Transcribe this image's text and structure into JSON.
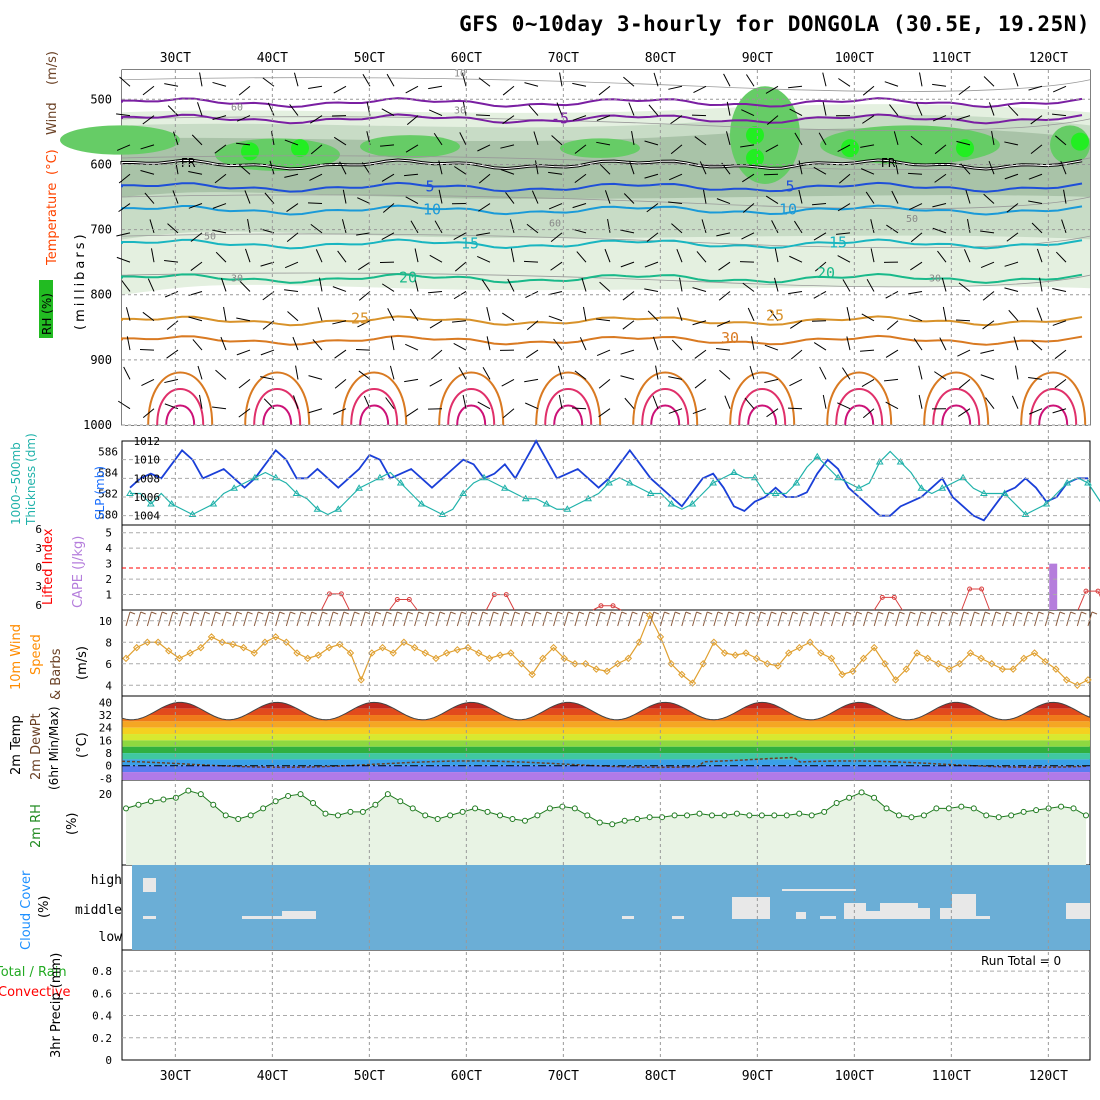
{
  "title": "GFS 0~10day 3-hourly for DONGOLA (30.5E, 19.25N)",
  "colors": {
    "wind_label": "#6b4226",
    "temp_label": "#ff4500",
    "rh_label": "#228b22",
    "cape_label": "#b57edc",
    "lifted_label": "#ff0000",
    "slp_label": "#1a6fff",
    "thick_label": "#20b2aa",
    "wind10_label": "#ff8c00",
    "dewpt_label": "#6b4226",
    "cloud_label": "#1e90ff",
    "precip_conv_label": "#ff0000",
    "precip_total_label": "#22aa22",
    "cloud_bg": "#6baed6",
    "rh_fill": "#e8f3e4"
  },
  "date_labels": [
    "30CT",
    "40CT",
    "50CT",
    "60CT",
    "70CT",
    "80CT",
    "90CT",
    "100CT",
    "110CT",
    "120CT"
  ],
  "panels": {
    "upper": {
      "y_label_wind": "Wind",
      "y_label_wind_units": "(m/s)",
      "y_label_temp": "Temperature",
      "y_label_temp_units": "(°C)",
      "y_label_rh": "RH (%)",
      "y_label_pressure": "(millibars)",
      "fr_label": "FR",
      "isotherm_labels": [
        "-5",
        "5",
        "10",
        "15",
        "20",
        "25",
        "30"
      ],
      "rh_labels": [
        "10",
        "30",
        "50",
        "60",
        "70"
      ]
    },
    "slp": {
      "y_label_thick": "1000~500mb",
      "y_label_thick2": "Thickness (dm)",
      "y_label_slp": "SLP (mb)"
    },
    "cape": {
      "y_label_li": "Lifted Index",
      "y_label_cape": "CAPE (J/kg)"
    },
    "wind10": {
      "y_label_1": "10m Wind",
      "y_label_2": "Speed",
      "y_label_3": "& Barbs",
      "y_label_units": "(m/s)"
    },
    "temp2m": {
      "y_label_1": "2m Temp",
      "y_label_2": "2m DewPt",
      "y_label_3": "(6hr Min/Max)",
      "y_label_units": "(°C)"
    },
    "rh2m": {
      "y_label": "2m RH",
      "y_label_units": "(%)"
    },
    "cloud": {
      "y_label": "Cloud Cover",
      "y_label_units": "(%)"
    },
    "precip": {
      "y_label_1": "Total / Rain",
      "y_label_2": "Convective",
      "y_label_3": "3hr Precip (mm)",
      "run_total_label": "Run Total = 0"
    }
  },
  "chart_data": [
    {
      "type": "line",
      "name": "SLP and 1000-500mb thickness",
      "series": [
        {
          "name": "SLP (mb)",
          "axis": "right",
          "values": [
            1007,
            1008,
            1008.5,
            1008,
            1009.5,
            1011,
            1010,
            1008,
            1008.5,
            1009,
            1008,
            1007,
            1008,
            1009.5,
            1011,
            1010,
            1008,
            1008,
            1009,
            1008,
            1007,
            1008,
            1009,
            1010.5,
            1010,
            1008,
            1008.5,
            1009,
            1008,
            1007,
            1008,
            1009,
            1010,
            1009.5,
            1008,
            1008.5,
            1009.5,
            1008,
            1010,
            1012,
            1010,
            1008,
            1008.5,
            1009,
            1008,
            1007,
            1008,
            1009.5,
            1011,
            1009.5,
            1008,
            1007,
            1006,
            1005,
            1006.5,
            1008,
            1008.5,
            1007,
            1005,
            1004.5,
            1005.5,
            1006,
            1007,
            1006,
            1006,
            1006.5,
            1008.5,
            1010,
            1009,
            1007,
            1006,
            1005,
            1004,
            1004,
            1005,
            1005.5,
            1006,
            1007,
            1008,
            1006,
            1005,
            1004,
            1003.5,
            1005,
            1006.5,
            1007,
            1008,
            1007,
            1005.5,
            1006,
            1007.5,
            1008,
            1008
          ]
        },
        {
          "name": "Thickness (dm)",
          "axis": "left",
          "values": [
            582,
            582,
            581,
            582,
            581,
            580.5,
            580,
            580.5,
            581,
            582,
            582.5,
            583,
            583.5,
            584,
            583.5,
            583,
            582,
            581.5,
            580.5,
            580,
            580.5,
            581.5,
            582.5,
            583,
            583.5,
            584,
            583,
            582,
            581,
            580.5,
            580,
            580.5,
            582,
            583,
            583.5,
            583,
            582.5,
            582,
            581.5,
            581.5,
            581,
            580.5,
            580.5,
            581,
            581.5,
            582,
            583,
            583.5,
            583,
            582.5,
            582,
            582,
            581,
            580.5,
            581,
            582,
            583,
            583.5,
            584,
            583.5,
            583.5,
            582,
            582,
            582,
            583,
            584.5,
            585.5,
            584.5,
            583.5,
            583,
            582.5,
            583,
            585,
            586,
            585,
            584,
            582.5,
            582,
            582.5,
            583,
            583.5,
            582.5,
            582,
            582,
            582,
            581,
            580,
            580.5,
            581,
            582,
            583,
            583.5,
            583,
            581.5,
            580,
            579.5,
            581
          ]
        }
      ],
      "ylim_left": [
        579,
        587
      ],
      "ylim_right": [
        1003,
        1012
      ],
      "yticks_left": [
        "580",
        "582",
        "584",
        "586"
      ],
      "yticks_right": [
        "1004",
        "1006",
        "1008",
        "1010",
        "1012"
      ]
    },
    {
      "type": "bar",
      "name": "CAPE and Lifted Index",
      "cape_bars": [
        {
          "day": 9.6,
          "value": 3
        },
        {
          "day": 10.5,
          "value": 5
        }
      ],
      "lifted_index_peaks": [
        {
          "day": 2.8,
          "value": 2.3
        },
        {
          "day": 3.5,
          "value": 1.5
        },
        {
          "day": 4.5,
          "value": 2.2
        },
        {
          "day": 5.6,
          "value": 0.6
        },
        {
          "day": 8.5,
          "value": 1.8
        },
        {
          "day": 9.4,
          "value": 3
        },
        {
          "day": 10.6,
          "value": 2.7
        },
        {
          "day": 11.5,
          "value": 2.4
        }
      ],
      "yticks_li": [
        "6",
        "3",
        "0",
        "3",
        "6"
      ],
      "yticks_cape": [
        "1",
        "2",
        "3",
        "4",
        "5"
      ]
    },
    {
      "type": "line",
      "name": "10m Wind Speed",
      "values": [
        6.5,
        7.5,
        8,
        8,
        7.2,
        6.5,
        7,
        7.5,
        8.5,
        8,
        7.8,
        7.5,
        7,
        8,
        8.5,
        8,
        7,
        6.5,
        6.8,
        7.5,
        7.8,
        7,
        4.5,
        7,
        7.5,
        7,
        8,
        7.5,
        7,
        6.5,
        7,
        7.3,
        7.5,
        7,
        6.5,
        6.8,
        7,
        6,
        5,
        6.5,
        7.5,
        6.5,
        6,
        6,
        5.5,
        5.3,
        6,
        6.5,
        8,
        10.5,
        8.5,
        6,
        5,
        4.2,
        6,
        8,
        7,
        6.8,
        7,
        6.5,
        6,
        5.8,
        7,
        7.5,
        8,
        7,
        6.5,
        5,
        5.3,
        6.5,
        7.5,
        6,
        4.5,
        5.5,
        7,
        6.5,
        6,
        5.5,
        6,
        7,
        6.5,
        6,
        5.5,
        5.5,
        6.5,
        7,
        6.2,
        5.5,
        4.5,
        4,
        4.5
      ],
      "ylim": [
        3,
        11
      ],
      "yticks": [
        "4",
        "6",
        "8",
        "10"
      ]
    },
    {
      "type": "area",
      "name": "2m Temp / DewPt",
      "temp_max_days": [
        0.5,
        1.5,
        2.5,
        3.5,
        4.5,
        5.5,
        6.5,
        7.5,
        8.5,
        9.5
      ],
      "temp_range": [
        29,
        40
      ],
      "dewpt_range": [
        -3,
        3
      ],
      "yticks": [
        "40",
        "32",
        "24",
        "16",
        "8",
        "0",
        "-8"
      ]
    },
    {
      "type": "line",
      "name": "2m RH",
      "values": [
        16,
        17,
        18,
        18.5,
        19,
        21,
        20,
        17,
        14,
        13,
        14,
        16,
        18,
        19.5,
        20,
        17.5,
        14.5,
        14,
        15,
        15,
        17,
        20,
        18,
        16,
        14,
        13,
        14,
        15,
        16,
        15,
        14,
        13,
        12.5,
        14,
        16,
        16.5,
        16,
        14,
        12,
        11.5,
        12.5,
        13,
        13.5,
        13.5,
        14,
        14,
        14.5,
        14,
        14,
        14.5,
        14,
        14,
        14,
        14,
        14.5,
        14,
        15,
        17.5,
        19,
        20.5,
        19,
        16,
        14,
        13.5,
        14,
        16,
        16,
        16.5,
        16,
        14,
        13.5,
        14,
        15,
        15.5,
        16,
        16.5,
        16,
        14
      ],
      "ylim": [
        0,
        24
      ],
      "yticks": [
        "20"
      ]
    },
    {
      "type": "heatmap",
      "name": "Cloud Cover",
      "levels": [
        "high",
        "middle",
        "low"
      ],
      "note": "mostly clear with scattered middle cloud later in period"
    },
    {
      "type": "bar",
      "name": "3hr Precip",
      "values": [],
      "ylim": [
        0,
        0.9
      ],
      "yticks": [
        "0",
        "0.2",
        "0.4",
        "0.6",
        "0.8"
      ],
      "run_total": 0
    }
  ]
}
